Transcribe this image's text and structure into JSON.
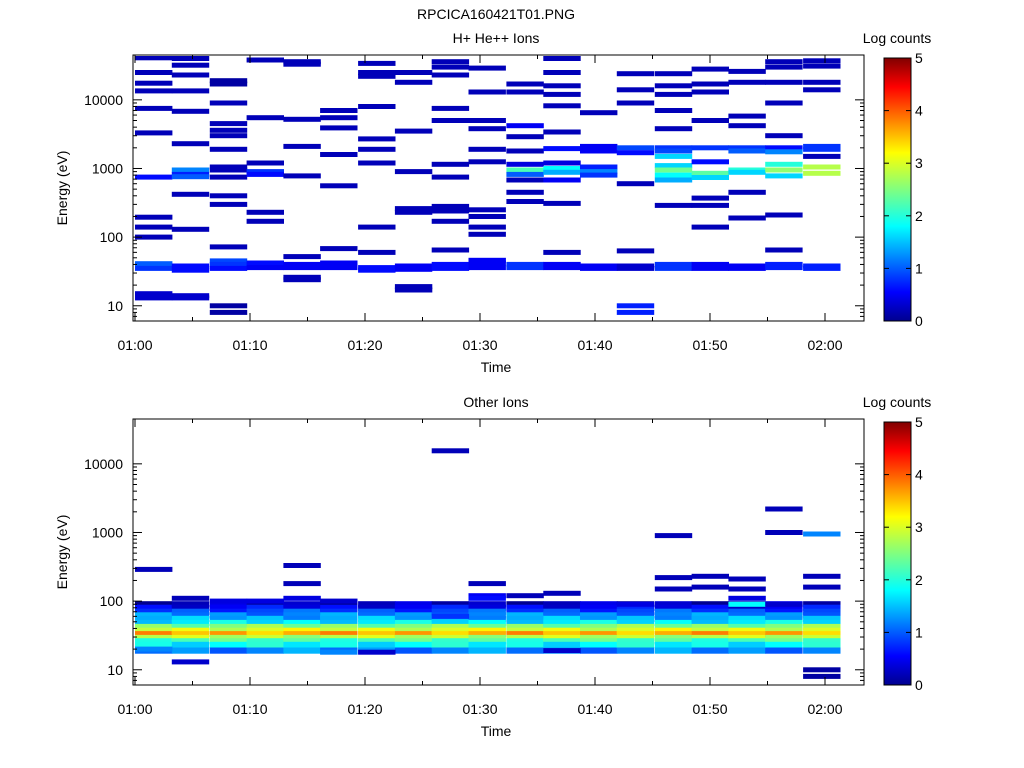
{
  "figure_title": "RPCICA160421T01.PNG",
  "colorbar": {
    "label": "Log counts",
    "ticks": [
      "0",
      "1",
      "2",
      "3",
      "4",
      "5"
    ],
    "range": [
      0,
      5
    ],
    "colormap": "jet"
  },
  "chart_data": [
    {
      "type": "heatmap",
      "title": "H+ He++ Ions",
      "xlabel": "Time",
      "ylabel": "Energy (eV)",
      "x_tick_labels": [
        "01:00",
        "01:10",
        "01:20",
        "01:30",
        "01:40",
        "01:50",
        "02:00"
      ],
      "xlim": [
        "01:00",
        "02:03"
      ],
      "y_tick_labels": [
        "10",
        "100",
        "1000",
        "10000"
      ],
      "ylim": [
        6,
        45000
      ],
      "y_scale": "log",
      "time_bins_start_min": [
        0,
        3.2,
        6.5,
        9.7,
        12.9,
        16.1,
        19.4,
        22.6,
        25.8,
        29.0,
        32.3,
        35.5,
        38.7,
        41.9,
        45.2,
        48.4,
        51.6,
        54.8,
        58.1
      ],
      "time_bin_width_min": 3.2,
      "cells": [
        [
          0,
          41000,
          0.2
        ],
        [
          0,
          25000,
          0.2
        ],
        [
          0,
          17500,
          0.2
        ],
        [
          0,
          13500,
          0.2
        ],
        [
          0,
          7500,
          0.2
        ],
        [
          0,
          3300,
          0.2
        ],
        [
          0,
          750,
          0.6
        ],
        [
          0,
          195,
          0.2
        ],
        [
          0,
          140,
          0.2
        ],
        [
          0,
          100,
          0.2
        ],
        [
          0,
          41,
          1.0
        ],
        [
          0,
          35,
          0.8
        ],
        [
          0,
          15,
          0.3
        ],
        [
          0,
          13,
          0.3
        ],
        [
          1,
          40000,
          0.2
        ],
        [
          1,
          32000,
          0.2
        ],
        [
          1,
          23000,
          0.2
        ],
        [
          1,
          13500,
          0.2
        ],
        [
          1,
          6800,
          0.2
        ],
        [
          1,
          2300,
          0.2
        ],
        [
          1,
          950,
          1.2
        ],
        [
          1,
          820,
          0.7
        ],
        [
          1,
          760,
          1.0
        ],
        [
          1,
          420,
          0.2
        ],
        [
          1,
          130,
          0.2
        ],
        [
          1,
          38,
          0.6
        ],
        [
          1,
          33,
          0.6
        ],
        [
          1,
          14,
          0.3
        ],
        [
          1,
          13,
          0.3
        ],
        [
          2,
          19000,
          0.1
        ],
        [
          2,
          17000,
          0.1
        ],
        [
          2,
          9000,
          0.2
        ],
        [
          2,
          4500,
          0.2
        ],
        [
          2,
          3600,
          0.2
        ],
        [
          2,
          3000,
          0.2
        ],
        [
          2,
          1900,
          0.2
        ],
        [
          2,
          1050,
          0.2
        ],
        [
          2,
          950,
          0.2
        ],
        [
          2,
          750,
          0.2
        ],
        [
          2,
          400,
          0.2
        ],
        [
          2,
          300,
          0.2
        ],
        [
          2,
          72,
          0.2
        ],
        [
          2,
          45,
          0.9
        ],
        [
          2,
          40,
          0.8
        ],
        [
          2,
          35,
          0.6
        ],
        [
          2,
          10,
          0.1
        ],
        [
          2,
          8,
          0.1
        ],
        [
          3,
          38000,
          0.2
        ],
        [
          3,
          5500,
          0.2
        ],
        [
          3,
          1200,
          0.2
        ],
        [
          3,
          900,
          0.8
        ],
        [
          3,
          820,
          0.6
        ],
        [
          3,
          230,
          0.2
        ],
        [
          3,
          170,
          0.2
        ],
        [
          3,
          42,
          0.6
        ],
        [
          3,
          36,
          0.5
        ],
        [
          4,
          36000,
          0.2
        ],
        [
          4,
          33000,
          0.2
        ],
        [
          4,
          5200,
          0.2
        ],
        [
          4,
          2100,
          0.2
        ],
        [
          4,
          780,
          0.2
        ],
        [
          4,
          52,
          0.2
        ],
        [
          4,
          40,
          0.5
        ],
        [
          4,
          36,
          0.5
        ],
        [
          4,
          26,
          0.2
        ],
        [
          4,
          24,
          0.2
        ],
        [
          5,
          7000,
          0.2
        ],
        [
          5,
          5500,
          0.2
        ],
        [
          5,
          3900,
          0.2
        ],
        [
          5,
          1600,
          0.2
        ],
        [
          5,
          560,
          0.2
        ],
        [
          5,
          68,
          0.2
        ],
        [
          5,
          42,
          0.5
        ],
        [
          5,
          36,
          0.5
        ],
        [
          6,
          34000,
          0.2
        ],
        [
          6,
          25000,
          0.2
        ],
        [
          6,
          22000,
          0.2
        ],
        [
          6,
          8000,
          0.2
        ],
        [
          6,
          2700,
          0.2
        ],
        [
          6,
          1900,
          0.2
        ],
        [
          6,
          1200,
          0.2
        ],
        [
          6,
          140,
          0.2
        ],
        [
          6,
          60,
          0.2
        ],
        [
          6,
          36,
          0.6
        ],
        [
          6,
          33,
          0.6
        ],
        [
          7,
          25000,
          0.2
        ],
        [
          7,
          18000,
          0.2
        ],
        [
          7,
          3500,
          0.2
        ],
        [
          7,
          900,
          0.2
        ],
        [
          7,
          260,
          0.2
        ],
        [
          7,
          230,
          0.2
        ],
        [
          7,
          38,
          0.5
        ],
        [
          7,
          34,
          0.5
        ],
        [
          7,
          19,
          0.2
        ],
        [
          7,
          17,
          0.2
        ],
        [
          8,
          36000,
          0.2
        ],
        [
          8,
          30000,
          0.2
        ],
        [
          8,
          23000,
          0.2
        ],
        [
          8,
          7500,
          0.2
        ],
        [
          8,
          5000,
          0.2
        ],
        [
          8,
          1150,
          0.2
        ],
        [
          8,
          750,
          0.2
        ],
        [
          8,
          280,
          0.2
        ],
        [
          8,
          240,
          0.2
        ],
        [
          8,
          170,
          0.2
        ],
        [
          8,
          65,
          0.2
        ],
        [
          8,
          40,
          0.6
        ],
        [
          8,
          35,
          0.6
        ],
        [
          9,
          29000,
          0.2
        ],
        [
          9,
          13000,
          0.2
        ],
        [
          9,
          5000,
          0.2
        ],
        [
          9,
          3800,
          0.2
        ],
        [
          9,
          1900,
          0.2
        ],
        [
          9,
          1250,
          0.2
        ],
        [
          9,
          250,
          0.2
        ],
        [
          9,
          200,
          0.2
        ],
        [
          9,
          140,
          0.2
        ],
        [
          9,
          110,
          0.2
        ],
        [
          9,
          46,
          0.5
        ],
        [
          9,
          42,
          0.5
        ],
        [
          9,
          36,
          0.5
        ],
        [
          10,
          17000,
          0.2
        ],
        [
          10,
          13000,
          0.2
        ],
        [
          10,
          4200,
          0.5
        ],
        [
          10,
          2900,
          0.2
        ],
        [
          10,
          1800,
          0.2
        ],
        [
          10,
          1150,
          0.4
        ],
        [
          10,
          950,
          2.2
        ],
        [
          10,
          820,
          1.0
        ],
        [
          10,
          680,
          0.2
        ],
        [
          10,
          450,
          0.2
        ],
        [
          10,
          330,
          0.2
        ],
        [
          10,
          40,
          0.8
        ],
        [
          10,
          36,
          0.8
        ],
        [
          11,
          40000,
          0.2
        ],
        [
          11,
          25000,
          0.2
        ],
        [
          11,
          16000,
          0.2
        ],
        [
          11,
          12000,
          0.2
        ],
        [
          11,
          8200,
          0.2
        ],
        [
          11,
          3400,
          0.2
        ],
        [
          11,
          1950,
          0.6
        ],
        [
          11,
          1200,
          0.4
        ],
        [
          11,
          1000,
          1.8
        ],
        [
          11,
          880,
          1.4
        ],
        [
          11,
          680,
          0.5
        ],
        [
          11,
          310,
          0.2
        ],
        [
          11,
          60,
          0.2
        ],
        [
          11,
          40,
          0.5
        ],
        [
          11,
          36,
          0.5
        ],
        [
          12,
          6500,
          0.2
        ],
        [
          12,
          2100,
          0.5
        ],
        [
          12,
          1800,
          0.5
        ],
        [
          12,
          1050,
          0.7
        ],
        [
          12,
          900,
          1.2
        ],
        [
          12,
          800,
          0.8
        ],
        [
          12,
          38,
          0.5
        ],
        [
          12,
          35,
          0.5
        ],
        [
          13,
          24000,
          0.2
        ],
        [
          13,
          14000,
          0.2
        ],
        [
          13,
          9000,
          0.2
        ],
        [
          13,
          2000,
          0.9
        ],
        [
          13,
          1700,
          0.6
        ],
        [
          13,
          600,
          0.2
        ],
        [
          13,
          63,
          0.2
        ],
        [
          13,
          38,
          0.3
        ],
        [
          13,
          35,
          0.3
        ],
        [
          13,
          10,
          0.7
        ],
        [
          13,
          8,
          0.7
        ],
        [
          14,
          24000,
          0.2
        ],
        [
          14,
          16000,
          0.2
        ],
        [
          14,
          12000,
          0.2
        ],
        [
          14,
          7000,
          0.2
        ],
        [
          14,
          3800,
          0.2
        ],
        [
          14,
          2000,
          0.8
        ],
        [
          14,
          1800,
          0.9
        ],
        [
          14,
          1500,
          1.6
        ],
        [
          14,
          1100,
          1.6
        ],
        [
          14,
          950,
          2.4
        ],
        [
          14,
          800,
          1.8
        ],
        [
          14,
          680,
          1.4
        ],
        [
          14,
          290,
          0.2
        ],
        [
          14,
          40,
          0.8
        ],
        [
          14,
          35,
          0.8
        ],
        [
          15,
          28000,
          0.2
        ],
        [
          15,
          17000,
          0.2
        ],
        [
          15,
          13000,
          0.2
        ],
        [
          15,
          5000,
          0.2
        ],
        [
          15,
          2000,
          0.8
        ],
        [
          15,
          1250,
          0.6
        ],
        [
          15,
          850,
          2.3
        ],
        [
          15,
          740,
          1.6
        ],
        [
          15,
          370,
          0.2
        ],
        [
          15,
          290,
          0.2
        ],
        [
          15,
          140,
          0.2
        ],
        [
          15,
          40,
          0.5
        ],
        [
          15,
          35,
          0.5
        ],
        [
          16,
          26000,
          0.2
        ],
        [
          16,
          18000,
          0.2
        ],
        [
          16,
          5800,
          0.2
        ],
        [
          16,
          4200,
          0.2
        ],
        [
          16,
          2000,
          0.8
        ],
        [
          16,
          1800,
          1.0
        ],
        [
          16,
          950,
          2.0
        ],
        [
          16,
          880,
          1.6
        ],
        [
          16,
          450,
          0.2
        ],
        [
          16,
          190,
          0.2
        ],
        [
          16,
          38,
          0.5
        ],
        [
          16,
          35,
          0.5
        ],
        [
          17,
          36000,
          0.2
        ],
        [
          17,
          30000,
          0.2
        ],
        [
          17,
          18000,
          0.2
        ],
        [
          17,
          9000,
          0.2
        ],
        [
          17,
          3000,
          0.2
        ],
        [
          17,
          2000,
          0.6
        ],
        [
          17,
          1750,
          1.2
        ],
        [
          17,
          1150,
          2.0
        ],
        [
          17,
          950,
          2.6
        ],
        [
          17,
          780,
          1.6
        ],
        [
          17,
          210,
          0.2
        ],
        [
          17,
          65,
          0.2
        ],
        [
          17,
          40,
          0.7
        ],
        [
          17,
          36,
          0.7
        ],
        [
          18,
          37000,
          0.2
        ],
        [
          18,
          31000,
          0.2
        ],
        [
          18,
          18000,
          0.2
        ],
        [
          18,
          14000,
          0.2
        ],
        [
          18,
          2100,
          0.8
        ],
        [
          18,
          1900,
          0.8
        ],
        [
          18,
          1500,
          0.2
        ],
        [
          18,
          1050,
          2.8
        ],
        [
          18,
          850,
          2.8
        ],
        [
          18,
          38,
          0.7
        ],
        [
          18,
          35,
          0.7
        ]
      ]
    },
    {
      "type": "heatmap",
      "title": "Other Ions",
      "xlabel": "Time",
      "ylabel": "Energy (eV)",
      "x_tick_labels": [
        "01:00",
        "01:10",
        "01:20",
        "01:30",
        "01:40",
        "01:50",
        "02:00"
      ],
      "xlim": [
        "01:00",
        "02:03"
      ],
      "y_tick_labels": [
        "10",
        "100",
        "1000",
        "10000"
      ],
      "ylim": [
        6,
        45000
      ],
      "y_scale": "log",
      "time_bins_start_min": [
        0,
        3.2,
        6.5,
        9.7,
        12.9,
        16.1,
        19.4,
        22.6,
        25.8,
        29.0,
        32.3,
        35.5,
        38.7,
        41.9,
        45.2,
        48.4,
        51.6,
        54.8,
        58.1
      ],
      "time_bin_width_min": 3.2,
      "energy_profile_eV": [
        90,
        80,
        70,
        62,
        55,
        48,
        42,
        37,
        33,
        29,
        26,
        23,
        19
      ],
      "base_profile_log_counts": [
        0.2,
        0.5,
        0.9,
        1.2,
        1.4,
        1.7,
        2.5,
        3.0,
        3.6,
        2.8,
        2.2,
        1.8,
        1.2
      ],
      "cells": [
        [
          0,
          290,
          0.2
        ],
        [
          0,
          20,
          1.2
        ],
        [
          1,
          110,
          0.2
        ],
        [
          1,
          13,
          0.3
        ],
        [
          2,
          100,
          0.4
        ],
        [
          3,
          100,
          0.4
        ],
        [
          4,
          330,
          0.2
        ],
        [
          4,
          180,
          0.2
        ],
        [
          4,
          110,
          0.4
        ],
        [
          5,
          100,
          0.3
        ],
        [
          5,
          18,
          1.2
        ],
        [
          6,
          18,
          0.3
        ],
        [
          8,
          15500,
          0.2
        ],
        [
          8,
          60,
          0.8
        ],
        [
          9,
          180,
          0.2
        ],
        [
          9,
          120,
          0.5
        ],
        [
          9,
          110,
          0.6
        ],
        [
          10,
          120,
          0.2
        ],
        [
          11,
          130,
          0.2
        ],
        [
          11,
          19,
          0.3
        ],
        [
          13,
          90,
          0.4
        ],
        [
          14,
          900,
          0.2
        ],
        [
          14,
          220,
          0.2
        ],
        [
          14,
          150,
          0.2
        ],
        [
          15,
          230,
          0.2
        ],
        [
          15,
          160,
          0.2
        ],
        [
          16,
          210,
          0.2
        ],
        [
          16,
          150,
          0.2
        ],
        [
          16,
          110,
          0.4
        ],
        [
          16,
          90,
          1.8
        ],
        [
          17,
          2200,
          0.2
        ],
        [
          17,
          1000,
          0.2
        ],
        [
          17,
          90,
          0.3
        ],
        [
          18,
          950,
          1.2
        ],
        [
          18,
          230,
          0.2
        ],
        [
          18,
          160,
          0.2
        ],
        [
          18,
          10,
          0.1
        ],
        [
          18,
          8,
          0.1
        ]
      ]
    }
  ]
}
